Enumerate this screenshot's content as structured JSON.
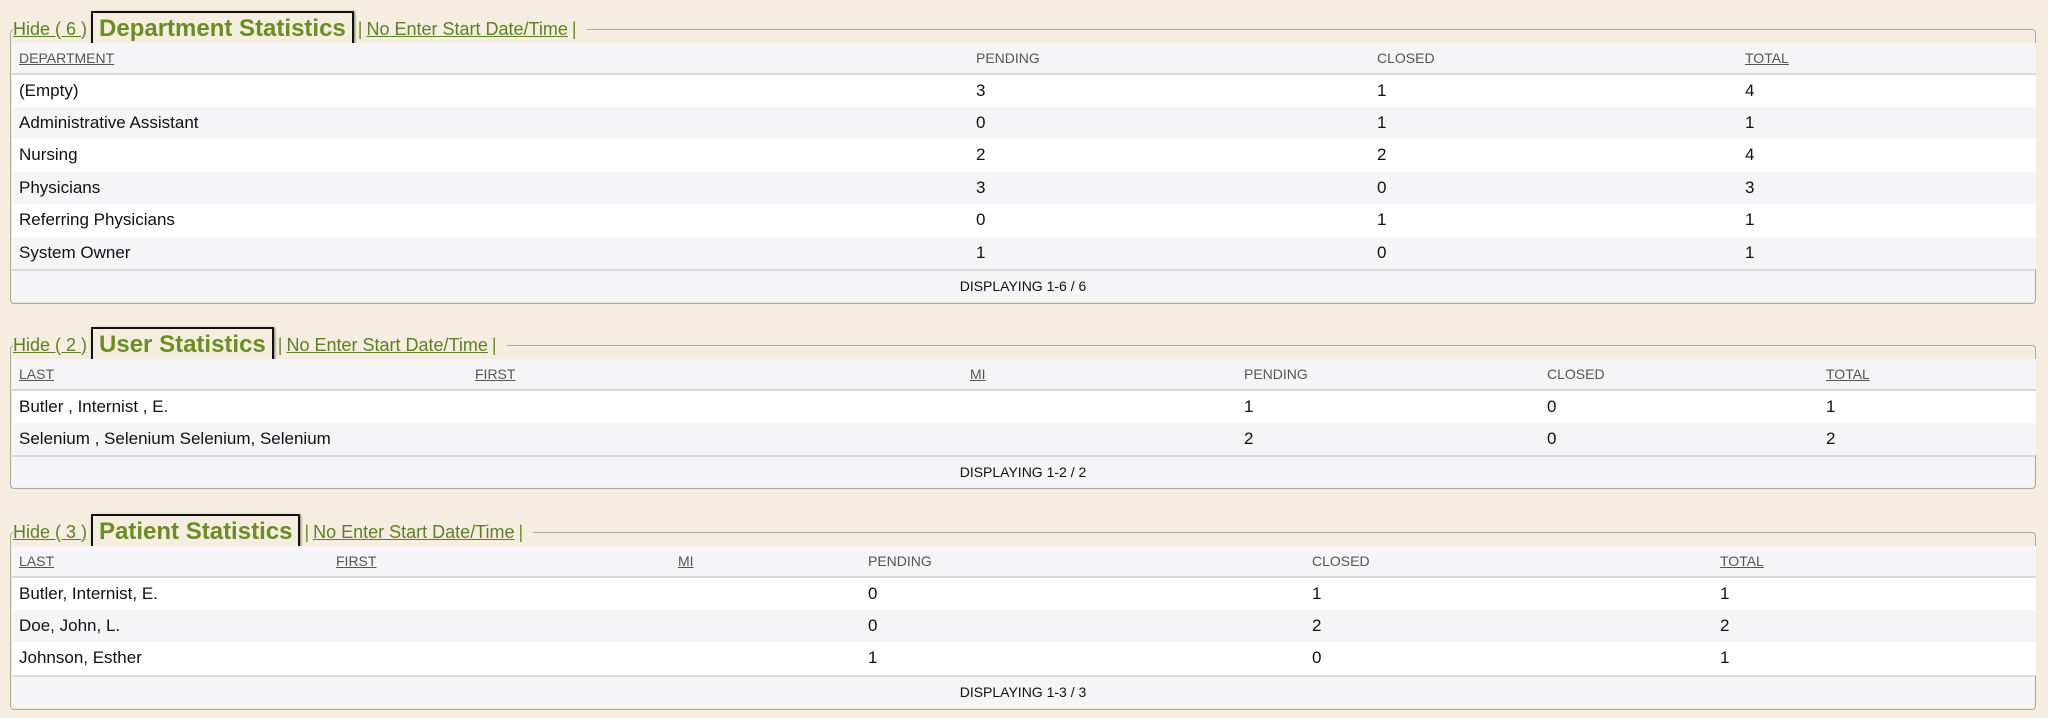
{
  "colors": {
    "accent": "#6b8e23",
    "background": "#f4ede0"
  },
  "department": {
    "hide_label": "Hide ( 6 )",
    "title": "Department Statistics",
    "date_link": "No Enter Start Date/Time",
    "separator": "|",
    "columns": [
      "DEPARTMENT",
      "PENDING",
      "CLOSED",
      "TOTAL"
    ],
    "rows": [
      [
        "(Empty)",
        "3",
        "1",
        "4"
      ],
      [
        "Administrative Assistant",
        "0",
        "1",
        "1"
      ],
      [
        "Nursing",
        "2",
        "2",
        "4"
      ],
      [
        "Physicians",
        "3",
        "0",
        "3"
      ],
      [
        "Referring Physicians",
        "0",
        "1",
        "1"
      ],
      [
        "System Owner",
        "1",
        "0",
        "1"
      ]
    ],
    "footer": "DISPLAYING 1-6 / 6"
  },
  "user": {
    "hide_label": "Hide ( 2 )",
    "title": "User Statistics",
    "date_link": "No Enter Start Date/Time",
    "separator": "|",
    "columns": [
      "LAST",
      "FIRST",
      "MI",
      "PENDING",
      "CLOSED",
      "TOTAL"
    ],
    "rows": [
      [
        "Butler , Internist , E.",
        "",
        "",
        "1",
        "0",
        "1"
      ],
      [
        "Selenium , Selenium Selenium, Selenium",
        "",
        "",
        "2",
        "0",
        "2"
      ]
    ],
    "footer": "DISPLAYING 1-2 / 2"
  },
  "patient": {
    "hide_label": "Hide ( 3 )",
    "title": "Patient Statistics",
    "date_link": "No Enter Start Date/Time",
    "separator": "|",
    "columns": [
      "LAST",
      "FIRST",
      "MI",
      "PENDING",
      "CLOSED",
      "TOTAL"
    ],
    "rows": [
      [
        "Butler, Internist, E.",
        "",
        "",
        "0",
        "1",
        "1"
      ],
      [
        "Doe, John, L.",
        "",
        "",
        "0",
        "2",
        "2"
      ],
      [
        "Johnson, Esther",
        "",
        "",
        "1",
        "0",
        "1"
      ]
    ],
    "footer": "DISPLAYING 1-3 / 3"
  }
}
